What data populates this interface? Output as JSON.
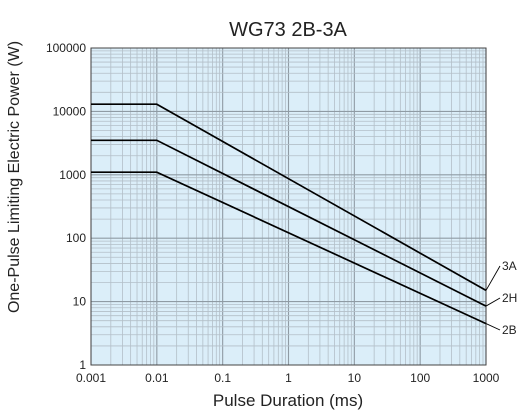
{
  "chart_data": {
    "type": "line",
    "title": "WG73 2B-3A",
    "xlabel": "Pulse Duration (ms)",
    "ylabel": "One-Pulse Limiting Electric Power (W)",
    "xscale": "log",
    "yscale": "log",
    "xlim": [
      0.001,
      1000
    ],
    "ylim": [
      1,
      100000
    ],
    "grid": true,
    "x_tick_labels": [
      "0.001",
      "0.01",
      "0.1",
      "1",
      "10",
      "100",
      "1000"
    ],
    "y_tick_labels": [
      "1",
      "10",
      "100",
      "1000",
      "10000",
      "100000"
    ],
    "series": [
      {
        "name": "3A",
        "x": [
          0.001,
          0.01,
          1000
        ],
        "y": [
          13000,
          13000,
          15
        ]
      },
      {
        "name": "2H",
        "x": [
          0.001,
          0.01,
          1000
        ],
        "y": [
          3500,
          3500,
          8.5
        ]
      },
      {
        "name": "2B",
        "x": [
          0.001,
          0.01,
          1000
        ],
        "y": [
          1100,
          1100,
          4.5
        ]
      }
    ]
  },
  "colors": {
    "plot_background": "#dbeef9",
    "grid_minor": "#b3bfc8",
    "grid_major": "#8f9ba4",
    "series_line": "#000000",
    "axis": "#444444"
  }
}
